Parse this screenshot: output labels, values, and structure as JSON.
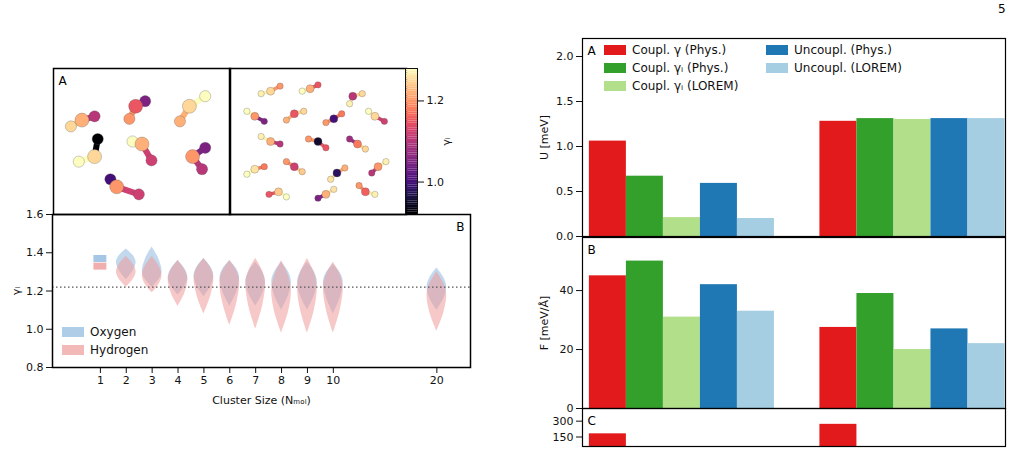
{
  "page": "5",
  "chart_data": [
    {
      "type": "scatter",
      "panel": "A",
      "colorbar": {
        "label": "γᵢ",
        "range": [
          0.92,
          1.28
        ],
        "ticks": [
          {
            "value": 1,
            "label": "1.0"
          },
          1.2
        ]
      },
      "subpanels": [
        {
          "molecules": [
            [
              [
                0.46,
                0.22,
                1.15
              ],
              [
                0.52,
                0.18,
                1.05
              ],
              [
                0.42,
                0.32,
                1.2
              ]
            ],
            [
              [
                0.8,
                0.22,
                1.25
              ],
              [
                0.74,
                0.34,
                1.22
              ],
              [
                0.9,
                0.14,
                1.28
              ]
            ],
            [
              [
                0.12,
                0.33,
                1.22
              ],
              [
                0.2,
                0.3,
                1.1
              ],
              [
                0.05,
                0.38,
                1.25
              ]
            ],
            [
              [
                0.5,
                0.52,
                1.22
              ],
              [
                0.44,
                0.5,
                1.28
              ],
              [
                0.56,
                0.65,
                1.12
              ]
            ],
            [
              [
                0.2,
                0.62,
                1.25
              ],
              [
                0.22,
                0.48,
                0.92
              ],
              [
                0.1,
                0.66,
                1.28
              ]
            ],
            [
              [
                0.82,
                0.62,
                1.2
              ],
              [
                0.9,
                0.55,
                1.05
              ],
              [
                0.88,
                0.72,
                1.1
              ]
            ],
            [
              [
                0.34,
                0.86,
                1.2
              ],
              [
                0.3,
                0.8,
                1.0
              ],
              [
                0.48,
                0.92,
                1.12
              ]
            ]
          ]
        },
        {
          "molecules": [
            [
              [
                0.2,
                0.1,
                1.25
              ],
              [
                0.14,
                0.12,
                1.27
              ],
              [
                0.26,
                0.06,
                1.2
              ]
            ],
            [
              [
                0.45,
                0.08,
                1.22
              ],
              [
                0.4,
                0.1,
                1.28
              ],
              [
                0.5,
                0.05,
                1.15
              ]
            ],
            [
              [
                0.72,
                0.14,
                1.1
              ],
              [
                0.78,
                0.12,
                1.25
              ],
              [
                0.7,
                0.2,
                1.27
              ]
            ],
            [
              [
                0.1,
                0.3,
                1.2
              ],
              [
                0.05,
                0.26,
                1.28
              ],
              [
                0.16,
                0.34,
                1.05
              ]
            ],
            [
              [
                0.35,
                0.28,
                1.15
              ],
              [
                0.41,
                0.26,
                1.25
              ],
              [
                0.3,
                0.33,
                1.22
              ]
            ],
            [
              [
                0.6,
                0.32,
                1.0
              ],
              [
                0.55,
                0.35,
                1.2
              ],
              [
                0.65,
                0.28,
                1.18
              ]
            ],
            [
              [
                0.86,
                0.3,
                1.25
              ],
              [
                0.92,
                0.34,
                1.12
              ],
              [
                0.82,
                0.26,
                1.28
              ]
            ],
            [
              [
                0.2,
                0.5,
                1.22
              ],
              [
                0.26,
                0.52,
                1.1
              ],
              [
                0.14,
                0.46,
                1.27
              ]
            ],
            [
              [
                0.5,
                0.5,
                0.95
              ],
              [
                0.44,
                0.48,
                1.2
              ],
              [
                0.55,
                0.55,
                1.15
              ]
            ],
            [
              [
                0.75,
                0.52,
                1.18
              ],
              [
                0.8,
                0.56,
                1.25
              ],
              [
                0.7,
                0.48,
                1.08
              ]
            ],
            [
              [
                0.1,
                0.72,
                1.26
              ],
              [
                0.16,
                0.7,
                1.18
              ],
              [
                0.05,
                0.76,
                1.28
              ]
            ],
            [
              [
                0.35,
                0.7,
                1.12
              ],
              [
                0.4,
                0.74,
                1.24
              ],
              [
                0.3,
                0.66,
                1.2
              ]
            ],
            [
              [
                0.62,
                0.75,
                0.98
              ],
              [
                0.67,
                0.71,
                1.22
              ],
              [
                0.58,
                0.8,
                1.26
              ]
            ],
            [
              [
                0.88,
                0.7,
                1.2
              ],
              [
                0.93,
                0.66,
                1.27
              ],
              [
                0.84,
                0.75,
                1.1
              ]
            ],
            [
              [
                0.25,
                0.9,
                1.24
              ],
              [
                0.19,
                0.92,
                1.15
              ],
              [
                0.3,
                0.94,
                1.28
              ]
            ],
            [
              [
                0.55,
                0.92,
                1.22
              ],
              [
                0.6,
                0.88,
                1.26
              ],
              [
                0.5,
                0.95,
                1.05
              ]
            ],
            [
              [
                0.8,
                0.9,
                1.16
              ],
              [
                0.86,
                0.92,
                1.27
              ],
              [
                0.76,
                0.85,
                1.2
              ]
            ]
          ]
        }
      ]
    },
    {
      "type": "violin",
      "panel": "B",
      "xlabel": "Cluster Size (Nₘₒₗ)",
      "ylabel": "γᵢ",
      "categories": [
        "1",
        "2",
        "3",
        "4",
        "5",
        "6",
        "7",
        "8",
        "9",
        "10",
        null,
        null,
        null,
        "20"
      ],
      "ylim": [
        0.8,
        1.6
      ],
      "yticks": [
        0.8,
        {
          "value": 1,
          "label": "1.0"
        },
        1.2,
        1.4,
        1.6
      ],
      "legend": "lower left",
      "reference_lines": [
        {
          "y": 1.22,
          "line_style": "dotted"
        }
      ],
      "series": [
        {
          "name": "Oxygen",
          "color": "#8fb8de",
          "values": [
            1.37,
            {
              "min": 1.26,
              "mode": 1.35,
              "max": 1.42
            },
            {
              "min": 1.22,
              "mode": 1.3,
              "max": 1.43
            },
            {
              "min": 1.18,
              "mode": 1.27,
              "max": 1.36
            },
            {
              "min": 1.17,
              "mode": 1.28,
              "max": 1.37
            },
            {
              "min": 1.12,
              "mode": 1.27,
              "max": 1.36
            },
            {
              "min": 1.12,
              "mode": 1.25,
              "max": 1.35
            },
            {
              "min": 1.1,
              "mode": 1.25,
              "max": 1.35
            },
            {
              "min": 1.1,
              "mode": 1.25,
              "max": 1.35
            },
            {
              "min": 1.08,
              "mode": 1.25,
              "max": 1.34
            },
            null,
            null,
            null,
            {
              "min": 1.1,
              "mode": 1.22,
              "max": 1.32
            }
          ]
        },
        {
          "name": "Hydrogen",
          "color": "#ee9a9a",
          "values": [
            1.33,
            {
              "min": 1.22,
              "mode": 1.3,
              "max": 1.38
            },
            {
              "min": 1.19,
              "mode": 1.28,
              "max": 1.38
            },
            {
              "min": 1.12,
              "mode": 1.26,
              "max": 1.36
            },
            {
              "min": 1.08,
              "mode": 1.27,
              "max": 1.37
            },
            {
              "min": 1.02,
              "mode": 1.25,
              "max": 1.36
            },
            {
              "min": 1.0,
              "mode": 1.24,
              "max": 1.37
            },
            {
              "min": 0.98,
              "mode": 1.2,
              "max": 1.36
            },
            {
              "min": 0.98,
              "mode": 1.22,
              "max": 1.37
            },
            {
              "min": 0.98,
              "mode": 1.22,
              "max": 1.35
            },
            null,
            null,
            null,
            {
              "min": 0.99,
              "mode": 1.18,
              "max": 1.3
            }
          ]
        }
      ]
    },
    {
      "type": "bar",
      "panel": "A",
      "ylabel": "U [meV]",
      "categories": [
        null,
        null
      ],
      "ylim": [
        0,
        2.2
      ],
      "yticks": [
        {
          "value": 0,
          "label": "0.0"
        },
        0.5,
        {
          "value": 1,
          "label": "1.0"
        },
        1.5,
        {
          "value": 2,
          "label": "2.0"
        }
      ],
      "legend": "upper left",
      "series": [
        {
          "name": "Coupl. γ (Phys.)",
          "color": "#e31a1c",
          "values": [
            1.06,
            1.28
          ]
        },
        {
          "name": "Coupl. γᵢ (Phys.)",
          "color": "#33a02c",
          "values": [
            0.67,
            1.31
          ]
        },
        {
          "name": "Coupl. γᵢ (LOREM)",
          "color": "#b2df8a",
          "values": [
            0.21,
            1.3
          ]
        },
        {
          "name": "Uncoupl. (Phys.)",
          "color": "#1f78b4",
          "values": [
            0.59,
            1.31
          ]
        },
        {
          "name": "Uncoupl. (LOREM)",
          "color": "#a6cee3",
          "values": [
            0.2,
            1.31
          ]
        }
      ]
    },
    {
      "type": "bar",
      "panel": "B",
      "ylabel": "F [meV/Å]",
      "categories": [
        null,
        null
      ],
      "ylim": [
        0,
        58
      ],
      "yticks": [
        0,
        20,
        40
      ],
      "series": [
        {
          "name": "Coupl. γ (Phys.)",
          "color": "#e31a1c",
          "values": [
            45,
            27.5
          ]
        },
        {
          "name": "Coupl. γᵢ (Phys.)",
          "color": "#33a02c",
          "values": [
            50,
            39
          ]
        },
        {
          "name": "Coupl. γᵢ (LOREM)",
          "color": "#b2df8a",
          "values": [
            31,
            20
          ]
        },
        {
          "name": "Uncoupl. (Phys.)",
          "color": "#1f78b4",
          "values": [
            42,
            27
          ]
        },
        {
          "name": "Uncoupl. (LOREM)",
          "color": "#a6cee3",
          "values": [
            33,
            22
          ]
        }
      ]
    },
    {
      "type": "bar",
      "panel": "C",
      "categories": [
        null,
        null
      ],
      "ylim": [
        60,
        420
      ],
      "yticks": [
        150,
        300
      ],
      "series": [
        {
          "name": "Coupl. γ (Phys.)",
          "color": "#e31a1c",
          "values": [
            180,
            270
          ]
        }
      ]
    }
  ]
}
